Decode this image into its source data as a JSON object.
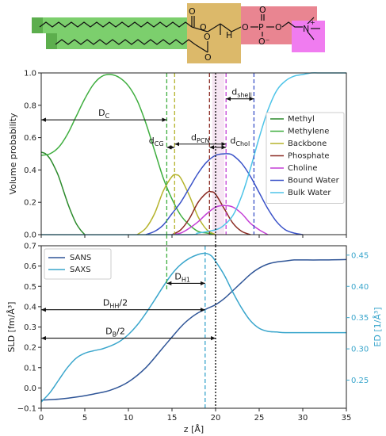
{
  "molecule": {
    "labels": [
      {
        "text": "O"
      },
      {
        "text": "O"
      },
      {
        "text": "O"
      },
      {
        "text": "O"
      },
      {
        "text": "H"
      },
      {
        "text": "O"
      },
      {
        "text": "P"
      },
      {
        "text": "O"
      },
      {
        "text": "O"
      },
      {
        "text": "O⁻"
      },
      {
        "text": "N"
      },
      {
        "text": "+"
      }
    ],
    "region_colors": {
      "methylene": "#7ccf6d",
      "methyl": "#5cae4d",
      "backbone": "#dcb96a",
      "phosphate": "#e98591",
      "choline": "#f07cf0"
    }
  },
  "chart_data": [
    {
      "type": "line",
      "panel": "top",
      "xlim": [
        0,
        35
      ],
      "ylim": [
        0,
        1.0
      ],
      "xticks": [
        0,
        5,
        10,
        15,
        20,
        25,
        30,
        35
      ],
      "yticks": [
        0.0,
        0.2,
        0.4,
        0.6,
        0.8,
        1.0
      ],
      "ytick_labels": [
        "0.0",
        "0.2",
        "0.4",
        "0.6",
        "0.8",
        "1.0"
      ],
      "ylabel": "Volume probability",
      "legend": "right",
      "series": [
        {
          "name": "Methyl",
          "color": "#2b8a2b",
          "x": [
            0,
            0.5,
            1,
            1.5,
            2,
            2.5,
            3,
            3.5,
            4,
            4.5,
            5
          ],
          "y": [
            0.51,
            0.5,
            0.47,
            0.42,
            0.36,
            0.28,
            0.2,
            0.13,
            0.07,
            0.03,
            0.0
          ]
        },
        {
          "name": "Methylene",
          "color": "#3fae3f",
          "x": [
            0,
            1,
            2,
            3,
            4,
            5,
            6,
            7,
            8,
            9,
            10,
            11,
            12,
            13,
            14,
            15,
            16,
            17,
            18,
            19,
            20
          ],
          "y": [
            0.49,
            0.5,
            0.54,
            0.62,
            0.73,
            0.84,
            0.93,
            0.98,
            0.99,
            0.97,
            0.92,
            0.83,
            0.69,
            0.52,
            0.35,
            0.22,
            0.12,
            0.06,
            0.02,
            0.01,
            0.0
          ]
        },
        {
          "name": "Backbone",
          "color": "#b5b32c",
          "x": [
            11,
            12,
            13,
            14,
            15,
            15.5,
            16,
            17,
            18,
            19,
            20
          ],
          "y": [
            0.0,
            0.04,
            0.13,
            0.27,
            0.36,
            0.37,
            0.35,
            0.24,
            0.11,
            0.03,
            0.0
          ]
        },
        {
          "name": "Phosphate",
          "color": "#8b2a22",
          "x": [
            15,
            16,
            17,
            18,
            19,
            19.5,
            20,
            21,
            22,
            23,
            24
          ],
          "y": [
            0.0,
            0.03,
            0.1,
            0.2,
            0.26,
            0.265,
            0.25,
            0.16,
            0.07,
            0.02,
            0.0
          ]
        },
        {
          "name": "Choline",
          "color": "#c43fd6",
          "x": [
            15,
            16,
            17,
            18,
            19,
            20,
            21,
            22,
            23,
            24,
            25,
            26
          ],
          "y": [
            0.0,
            0.01,
            0.04,
            0.08,
            0.13,
            0.17,
            0.18,
            0.17,
            0.13,
            0.07,
            0.03,
            0.0
          ]
        },
        {
          "name": "Bound Water",
          "color": "#3a52c8",
          "x": [
            12,
            13,
            14,
            15,
            16,
            17,
            18,
            19,
            20,
            21,
            21.5,
            22,
            23,
            24,
            25,
            26,
            27,
            28,
            29,
            30
          ],
          "y": [
            0.0,
            0.02,
            0.06,
            0.13,
            0.2,
            0.29,
            0.38,
            0.45,
            0.49,
            0.5,
            0.5,
            0.49,
            0.44,
            0.36,
            0.26,
            0.16,
            0.08,
            0.03,
            0.01,
            0.0
          ]
        },
        {
          "name": "Bulk Water",
          "color": "#4ec4e8",
          "x": [
            0,
            16,
            18,
            20,
            21,
            22,
            23,
            24,
            25,
            26,
            27,
            28,
            29,
            30,
            31,
            32,
            35
          ],
          "y": [
            0.0,
            0.0,
            0.01,
            0.03,
            0.06,
            0.12,
            0.24,
            0.41,
            0.6,
            0.77,
            0.89,
            0.95,
            0.98,
            0.99,
            1.0,
            1.0,
            1.0
          ]
        }
      ],
      "vlines": [
        {
          "x": 14.4,
          "color": "#3fae3f",
          "style": "dashed"
        },
        {
          "x": 15.3,
          "color": "#b5b32c",
          "style": "dashed"
        },
        {
          "x": 19.3,
          "color": "#8b2a22",
          "style": "dashed"
        },
        {
          "x": 21.2,
          "color": "#c43fd6",
          "style": "dashed"
        },
        {
          "x": 24.4,
          "color": "#3a52c8",
          "style": "dashed"
        },
        {
          "x": 20.0,
          "color": "#000000",
          "style": "dotted"
        }
      ],
      "annotations": [
        {
          "main": "D",
          "sub": "C",
          "from": 0,
          "to": 14.4,
          "y": 0.71
        },
        {
          "main": "d",
          "sub": "PCN",
          "from": 15.3,
          "to": 21.2,
          "y": 0.56
        },
        {
          "main": "d",
          "sub": "CG",
          "from": 14.4,
          "to": 15.3,
          "y": 0.54
        },
        {
          "main": "d",
          "sub": "Chol",
          "from": 19.3,
          "to": 21.2,
          "y": 0.54
        },
        {
          "main": "d",
          "sub": "shell",
          "from": 21.2,
          "to": 24.4,
          "y": 0.84
        }
      ]
    },
    {
      "type": "line",
      "panel": "bottom",
      "xlim": [
        0,
        35
      ],
      "ylim": [
        -0.1,
        0.7
      ],
      "y2lim": [
        0.205,
        0.465
      ],
      "xticks": [
        0,
        5,
        10,
        15,
        20,
        25,
        30,
        35
      ],
      "yticks": [
        -0.1,
        0.0,
        0.1,
        0.2,
        0.3,
        0.4,
        0.5,
        0.6,
        0.7
      ],
      "ytick_labels": [
        "−0.1",
        "0.0",
        "0.1",
        "0.2",
        "0.3",
        "0.4",
        "0.5",
        "0.6",
        "0.7"
      ],
      "y2ticks": [
        0.25,
        0.3,
        0.35,
        0.4,
        0.45
      ],
      "y2tick_labels": [
        "0.25",
        "0.30",
        "0.35",
        "0.40",
        "0.45"
      ],
      "xlabel": "z [Å]",
      "ylabel": "SLD [fm/Å³]",
      "y2label": "ED [1/Å³]",
      "legend": "upper-left",
      "series": [
        {
          "name": "SANS",
          "axis": "left",
          "color": "#2f5597",
          "x": [
            0,
            2,
            4,
            6,
            8,
            10,
            12,
            14,
            16,
            17,
            18,
            19,
            20,
            21,
            22,
            23,
            24,
            25,
            26,
            27,
            28,
            29,
            30,
            32,
            35
          ],
          "y": [
            -0.06,
            -0.055,
            -0.045,
            -0.03,
            -0.01,
            0.03,
            0.1,
            0.2,
            0.3,
            0.34,
            0.37,
            0.39,
            0.41,
            0.44,
            0.48,
            0.52,
            0.56,
            0.59,
            0.61,
            0.62,
            0.625,
            0.63,
            0.63,
            0.63,
            0.632
          ]
        },
        {
          "name": "SAXS",
          "axis": "right",
          "color": "#3aa6cc",
          "x": [
            0,
            1,
            2,
            3,
            4,
            5,
            6,
            7,
            8,
            9,
            10,
            11,
            12,
            13,
            14,
            15,
            16,
            17,
            18,
            18.8,
            19.5,
            20,
            21,
            22,
            23,
            24,
            25,
            26,
            27,
            28,
            30,
            35
          ],
          "y": [
            0.215,
            0.23,
            0.25,
            0.27,
            0.285,
            0.293,
            0.297,
            0.3,
            0.305,
            0.312,
            0.323,
            0.338,
            0.357,
            0.378,
            0.4,
            0.42,
            0.435,
            0.445,
            0.451,
            0.453,
            0.449,
            0.44,
            0.418,
            0.39,
            0.365,
            0.345,
            0.333,
            0.328,
            0.327,
            0.326,
            0.326,
            0.326
          ]
        }
      ],
      "vlines": [
        {
          "x": 18.8,
          "color": "#3aa6cc",
          "style": "dashed"
        },
        {
          "x": 20.0,
          "color": "#000000",
          "style": "dotted"
        }
      ],
      "annotations": [
        {
          "main": "D",
          "sub": "H1",
          "from": 14.4,
          "to": 18.8,
          "y": 0.515
        },
        {
          "main": "D",
          "sub": "HH",
          "suffix": "/2",
          "from": 0,
          "to": 18.8,
          "y": 0.385
        },
        {
          "main": "D",
          "sub": "B",
          "suffix": "/2",
          "from": 0,
          "to": 20.0,
          "y": 0.245
        }
      ]
    }
  ]
}
